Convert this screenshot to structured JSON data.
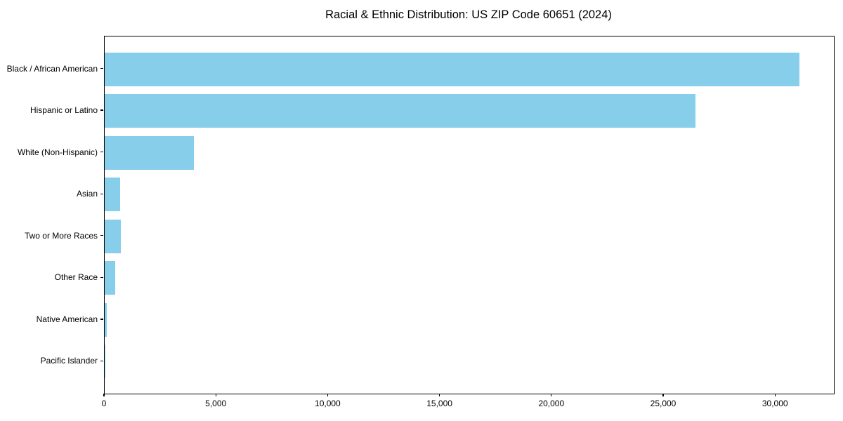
{
  "chart_data": {
    "type": "bar",
    "orientation": "horizontal",
    "title": "Racial & Ethnic Distribution: US ZIP Code 60651 (2024)",
    "categories": [
      "Black / African American",
      "Hispanic or Latino",
      "White (Non-Hispanic)",
      "Asian",
      "Two or More Races",
      "Other Race",
      "Native American",
      "Pacific Islander"
    ],
    "values": [
      31050,
      26400,
      3980,
      690,
      720,
      460,
      80,
      10
    ],
    "xlabel": "",
    "ylabel": "",
    "xlim": [
      0,
      32600
    ],
    "x_ticks": [
      0,
      5000,
      10000,
      15000,
      20000,
      25000,
      30000
    ],
    "x_tick_labels": [
      "0",
      "5,000",
      "10,000",
      "15,000",
      "20,000",
      "25,000",
      "30,000"
    ],
    "bar_color": "#87CEEB",
    "background_color": "#FFFFFF",
    "text_color": "#000000",
    "grid": false,
    "legend": null
  }
}
